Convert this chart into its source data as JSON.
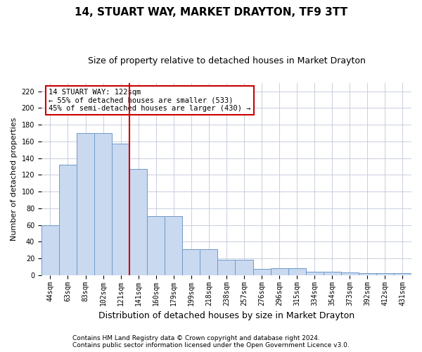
{
  "title1": "14, STUART WAY, MARKET DRAYTON, TF9 3TT",
  "title2": "Size of property relative to detached houses in Market Drayton",
  "xlabel": "Distribution of detached houses by size in Market Drayton",
  "ylabel": "Number of detached properties",
  "categories": [
    "44sqm",
    "63sqm",
    "83sqm",
    "102sqm",
    "121sqm",
    "141sqm",
    "160sqm",
    "179sqm",
    "199sqm",
    "218sqm",
    "238sqm",
    "257sqm",
    "276sqm",
    "296sqm",
    "315sqm",
    "334sqm",
    "354sqm",
    "373sqm",
    "392sqm",
    "412sqm",
    "431sqm"
  ],
  "values": [
    60,
    132,
    170,
    170,
    157,
    127,
    71,
    71,
    31,
    31,
    18,
    18,
    7,
    8,
    8,
    4,
    4,
    3,
    2,
    2,
    2
  ],
  "bar_color": "#c9d9f0",
  "bar_edge_color": "#7099c8",
  "vline_x": 4.5,
  "vline_color": "#cc0000",
  "annotation_text": "14 STUART WAY: 122sqm\n← 55% of detached houses are smaller (533)\n45% of semi-detached houses are larger (430) →",
  "annotation_box_color": "#ffffff",
  "annotation_box_edge": "#cc0000",
  "ylim": [
    0,
    230
  ],
  "yticks": [
    0,
    20,
    40,
    60,
    80,
    100,
    120,
    140,
    160,
    180,
    200,
    220
  ],
  "background_color": "#ffffff",
  "grid_color": "#c0c8d8",
  "footer1": "Contains HM Land Registry data © Crown copyright and database right 2024.",
  "footer2": "Contains public sector information licensed under the Open Government Licence v3.0.",
  "title1_fontsize": 11,
  "title2_fontsize": 9,
  "xlabel_fontsize": 9,
  "ylabel_fontsize": 8,
  "tick_fontsize": 7,
  "annotation_fontsize": 7.5,
  "footer_fontsize": 6.5
}
